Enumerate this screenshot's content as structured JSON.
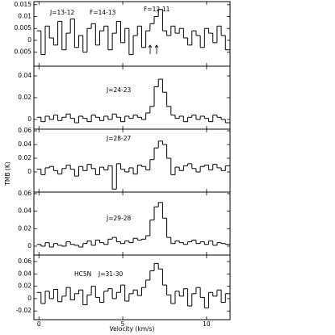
{
  "chart_data": [
    {
      "type": "line",
      "drawstyle": "steps",
      "color": "#000000",
      "annotations": [
        "J=13-12",
        "F=14-13",
        "F=12-11"
      ],
      "xlim": [
        -0.3,
        11.4
      ],
      "xticks": [
        0,
        5,
        10
      ],
      "ylim": [
        -0.0109,
        0.0163
      ],
      "yticks": [
        0.015,
        0.01,
        0.005,
        0,
        {
          "value": -0.005,
          "label": "0.005"
        }
      ],
      "x": [
        0,
        0.25,
        0.5,
        0.75,
        1,
        1.25,
        1.5,
        1.75,
        2,
        2.25,
        2.5,
        2.75,
        3,
        3.25,
        3.5,
        3.75,
        4,
        4.25,
        4.5,
        4.75,
        5,
        5.25,
        5.5,
        5.75,
        6,
        6.25,
        6.5,
        6.75,
        7,
        7.25,
        7.5,
        7.75,
        8,
        8.25,
        8.5,
        8.75,
        9,
        9.25,
        9.5,
        9.75,
        10,
        10.25,
        10.5,
        10.75,
        11,
        11.25
      ],
      "values": [
        0.004,
        -0.006,
        0.006,
        0.001,
        -0.002,
        0.008,
        -0.004,
        0.003,
        0.009,
        -0.003,
        0.002,
        -0.005,
        0.005,
        0.007,
        -0.002,
        0.004,
        0.006,
        -0.004,
        0.003,
        0.008,
        -0.001,
        0.005,
        -0.006,
        0.002,
        0.006,
        -0.003,
        0.004,
        0.007,
        0.01,
        0.013,
        0.004,
        0.002,
        0.006,
        0.003,
        0.005,
        0.001,
        -0.002,
        0.004,
        0.002,
        -0.003,
        0.005,
        0.003,
        -0.001,
        0.006,
        0.002,
        -0.004
      ]
    },
    {
      "type": "line",
      "drawstyle": "steps",
      "color": "#000000",
      "annotations": [
        "J=24-23"
      ],
      "xlim": [
        -0.3,
        11.4
      ],
      "xticks": [
        0,
        5,
        10
      ],
      "ylim": [
        -0.0089,
        0.0489
      ],
      "yticks": [
        0.04,
        0.02,
        0
      ],
      "x": [
        0,
        0.25,
        0.5,
        0.75,
        1,
        1.25,
        1.5,
        1.75,
        2,
        2.25,
        2.5,
        2.75,
        3,
        3.25,
        3.5,
        3.75,
        4,
        4.25,
        4.5,
        4.75,
        5,
        5.25,
        5.5,
        5.75,
        6,
        6.25,
        6.5,
        6.75,
        7,
        7.25,
        7.5,
        7.75,
        8,
        8.25,
        8.5,
        8.75,
        9,
        9.25,
        9.5,
        9.75,
        10,
        10.25,
        10.5,
        10.75,
        11,
        11.25
      ],
      "values": [
        0.002,
        -0.002,
        0.003,
        0.0,
        0.004,
        -0.001,
        0.002,
        0.005,
        0.001,
        -0.003,
        0.003,
        0.001,
        -0.002,
        0.004,
        0.002,
        -0.001,
        0.003,
        0.0,
        0.005,
        0.002,
        -0.002,
        0.003,
        0.001,
        0.004,
        0.002,
        0.0,
        0.006,
        0.012,
        0.03,
        0.037,
        0.025,
        0.012,
        0.004,
        0.001,
        0.003,
        -0.002,
        0.002,
        0.004,
        0.0,
        0.003,
        0.001,
        -0.002,
        0.004,
        0.002,
        0.0,
        -0.003
      ]
    },
    {
      "type": "line",
      "drawstyle": "steps",
      "color": "#000000",
      "annotations": [
        "J=28-27"
      ],
      "ylabel": "TMB (K)",
      "xlim": [
        -0.3,
        11.4
      ],
      "xticks": [
        0,
        5,
        10
      ],
      "ylim": [
        -0.0294,
        0.0624
      ],
      "yticks": [
        0.06,
        0.04,
        0.02,
        0
      ],
      "x": [
        0,
        0.25,
        0.5,
        0.75,
        1,
        1.25,
        1.5,
        1.75,
        2,
        2.25,
        2.5,
        2.75,
        3,
        3.25,
        3.5,
        3.75,
        4,
        4.25,
        4.5,
        4.75,
        5,
        5.25,
        5.5,
        5.75,
        6,
        6.25,
        6.5,
        6.75,
        7,
        7.25,
        7.5,
        7.75,
        8,
        8.25,
        8.5,
        8.75,
        9,
        9.25,
        9.5,
        9.75,
        10,
        10.25,
        10.5,
        10.75,
        11,
        11.25
      ],
      "values": [
        0.004,
        -0.004,
        0.006,
        0.008,
        0.002,
        -0.003,
        0.005,
        0.01,
        0.004,
        -0.006,
        0.008,
        0.002,
        0.011,
        0.005,
        -0.004,
        0.007,
        0.003,
        0.009,
        -0.025,
        0.012,
        0.004,
        0.0,
        0.006,
        -0.003,
        0.01,
        0.008,
        0.003,
        0.018,
        0.035,
        0.045,
        0.04,
        0.02,
        -0.004,
        0.007,
        0.002,
        0.009,
        0.012,
        0.005,
        0.0,
        0.008,
        0.01,
        0.003,
        0.011,
        0.006,
        0.002,
        0.009
      ]
    },
    {
      "type": "line",
      "drawstyle": "steps",
      "color": "#000000",
      "annotations": [
        "J=29-28"
      ],
      "xlim": [
        -0.3,
        11.4
      ],
      "xticks": [
        0,
        5,
        10
      ],
      "ylim": [
        -0.0102,
        0.0618
      ],
      "yticks": [
        0.06,
        0.04,
        0.02,
        0
      ],
      "x": [
        0,
        0.25,
        0.5,
        0.75,
        1,
        1.25,
        1.5,
        1.75,
        2,
        2.25,
        2.5,
        2.75,
        3,
        3.25,
        3.5,
        3.75,
        4,
        4.25,
        4.5,
        4.75,
        5,
        5.25,
        5.5,
        5.75,
        6,
        6.25,
        6.5,
        6.75,
        7,
        7.25,
        7.5,
        7.75,
        8,
        8.25,
        8.5,
        8.75,
        9,
        9.25,
        9.5,
        9.75,
        10,
        10.25,
        10.5,
        10.75,
        11,
        11.25
      ],
      "values": [
        0.002,
        0.0,
        0.004,
        -0.001,
        0.003,
        0.001,
        0.0,
        0.005,
        0.002,
        0.001,
        -0.001,
        0.003,
        0.006,
        0.001,
        0.007,
        0.004,
        0.002,
        0.008,
        0.01,
        0.005,
        0.003,
        0.006,
        0.004,
        0.009,
        0.007,
        0.008,
        0.012,
        0.03,
        0.045,
        0.05,
        0.032,
        0.01,
        0.003,
        0.006,
        0.004,
        0.002,
        0.005,
        0.007,
        0.003,
        0.005,
        0.002,
        0.006,
        0.001,
        0.004,
        0.003,
        0.002
      ]
    },
    {
      "type": "line",
      "drawstyle": "steps",
      "color": "#000000",
      "annotations": [
        "HC5N",
        "J=31-30"
      ],
      "xlabel": "Velocity (km/s)",
      "xlim": [
        -0.3,
        11.4
      ],
      "xticks": [
        0,
        5,
        10
      ],
      "ylim": [
        -0.0341,
        0.0705
      ],
      "yticks": [
        0.06,
        0.04,
        0.02,
        0,
        -0.02
      ],
      "x": [
        0,
        0.25,
        0.5,
        0.75,
        1,
        1.25,
        1.5,
        1.75,
        2,
        2.25,
        2.5,
        2.75,
        3,
        3.25,
        3.5,
        3.75,
        4,
        4.25,
        4.5,
        4.75,
        5,
        5.25,
        5.5,
        5.75,
        6,
        6.25,
        6.5,
        6.75,
        7,
        7.25,
        7.5,
        7.75,
        8,
        8.25,
        8.5,
        8.75,
        9,
        9.25,
        9.5,
        9.75,
        10,
        10.25,
        10.5,
        10.75,
        11,
        11.25
      ],
      "values": [
        0.01,
        -0.008,
        0.012,
        0.0,
        0.015,
        -0.005,
        0.004,
        0.018,
        -0.002,
        0.008,
        0.014,
        -0.01,
        0.006,
        0.02,
        0.002,
        -0.006,
        0.012,
        0.016,
        0.0,
        0.01,
        0.022,
        -0.004,
        0.008,
        0.014,
        0.005,
        0.018,
        0.03,
        0.045,
        0.057,
        0.048,
        0.022,
        0.006,
        -0.008,
        0.012,
        0.004,
        0.016,
        -0.012,
        0.008,
        0.018,
        0.002,
        -0.015,
        0.01,
        0.004,
        0.014,
        -0.006,
        0.008
      ]
    }
  ]
}
